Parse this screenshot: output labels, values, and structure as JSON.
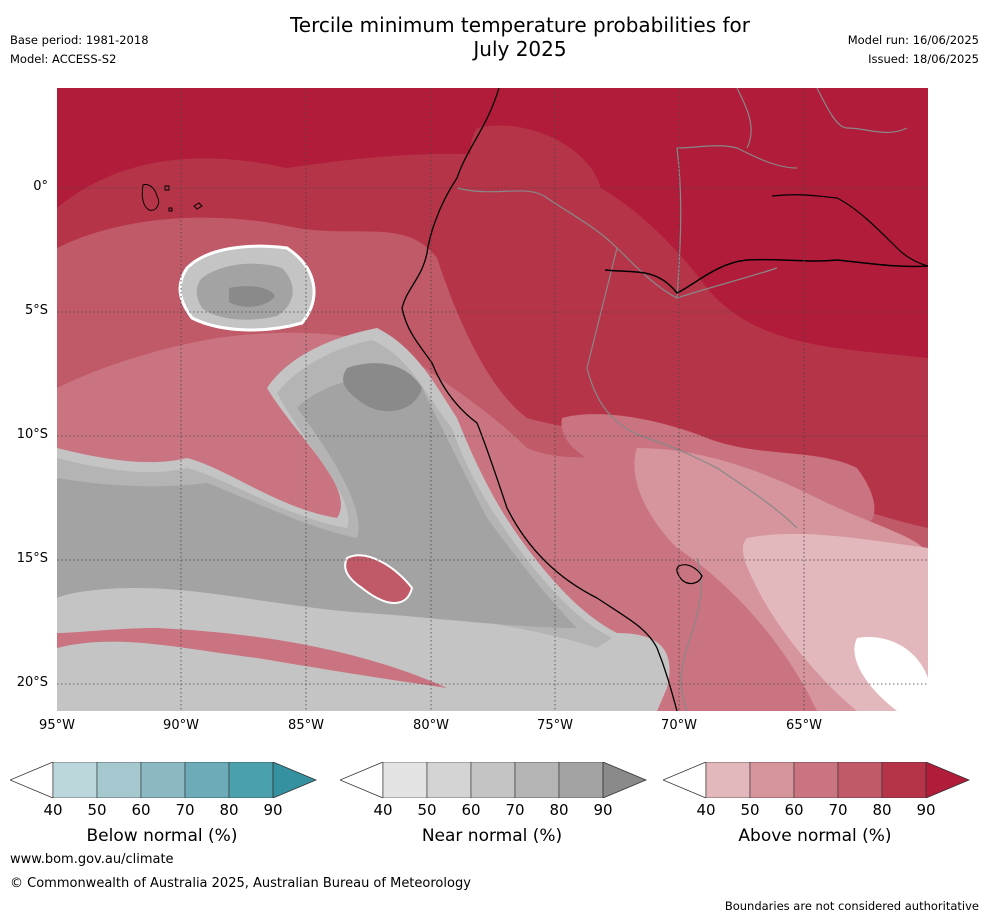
{
  "title_line1": "Tercile minimum temperature probabilities for",
  "title_line2": "July 2025",
  "base_period": "Base period: 1981-2018",
  "model": "Model: ACCESS-S2",
  "model_run": "Model run: 16/06/2025",
  "issued": "Issued: 18/06/2025",
  "lat_labels": [
    "0°",
    "5°S",
    "10°S",
    "15°S",
    "20°S"
  ],
  "lon_labels": [
    "95°W",
    "90°W",
    "85°W",
    "80°W",
    "75°W",
    "70°W",
    "65°W"
  ],
  "colorbars": [
    {
      "name": "below",
      "title": "Below normal (%)",
      "ticks": [
        "40",
        "50",
        "60",
        "70",
        "80",
        "90"
      ],
      "colors": [
        "#bcd7dc",
        "#a5c8cf",
        "#8ab9c3",
        "#6cabb7",
        "#4ba0ad",
        "#3590a0"
      ]
    },
    {
      "name": "near",
      "title": "Near normal (%)",
      "ticks": [
        "40",
        "50",
        "60",
        "70",
        "80",
        "90"
      ],
      "colors": [
        "#e3e3e3",
        "#d4d4d4",
        "#c4c4c4",
        "#b4b4b4",
        "#a3a3a3",
        "#8a8a8a"
      ]
    },
    {
      "name": "above",
      "title": "Above normal (%)",
      "ticks": [
        "40",
        "50",
        "60",
        "70",
        "80",
        "90"
      ],
      "colors": [
        "#e2b8bd",
        "#d6949c",
        "#c97480",
        "#c05a69",
        "#b63448",
        "#b11c3a"
      ]
    }
  ],
  "footer_url": "www.bom.gov.au/climate",
  "footer_copyright": "© Commonwealth of Australia 2025, Australian Bureau of Meteorology",
  "footer_disclaimer": "Boundaries are not considered authoritative"
}
